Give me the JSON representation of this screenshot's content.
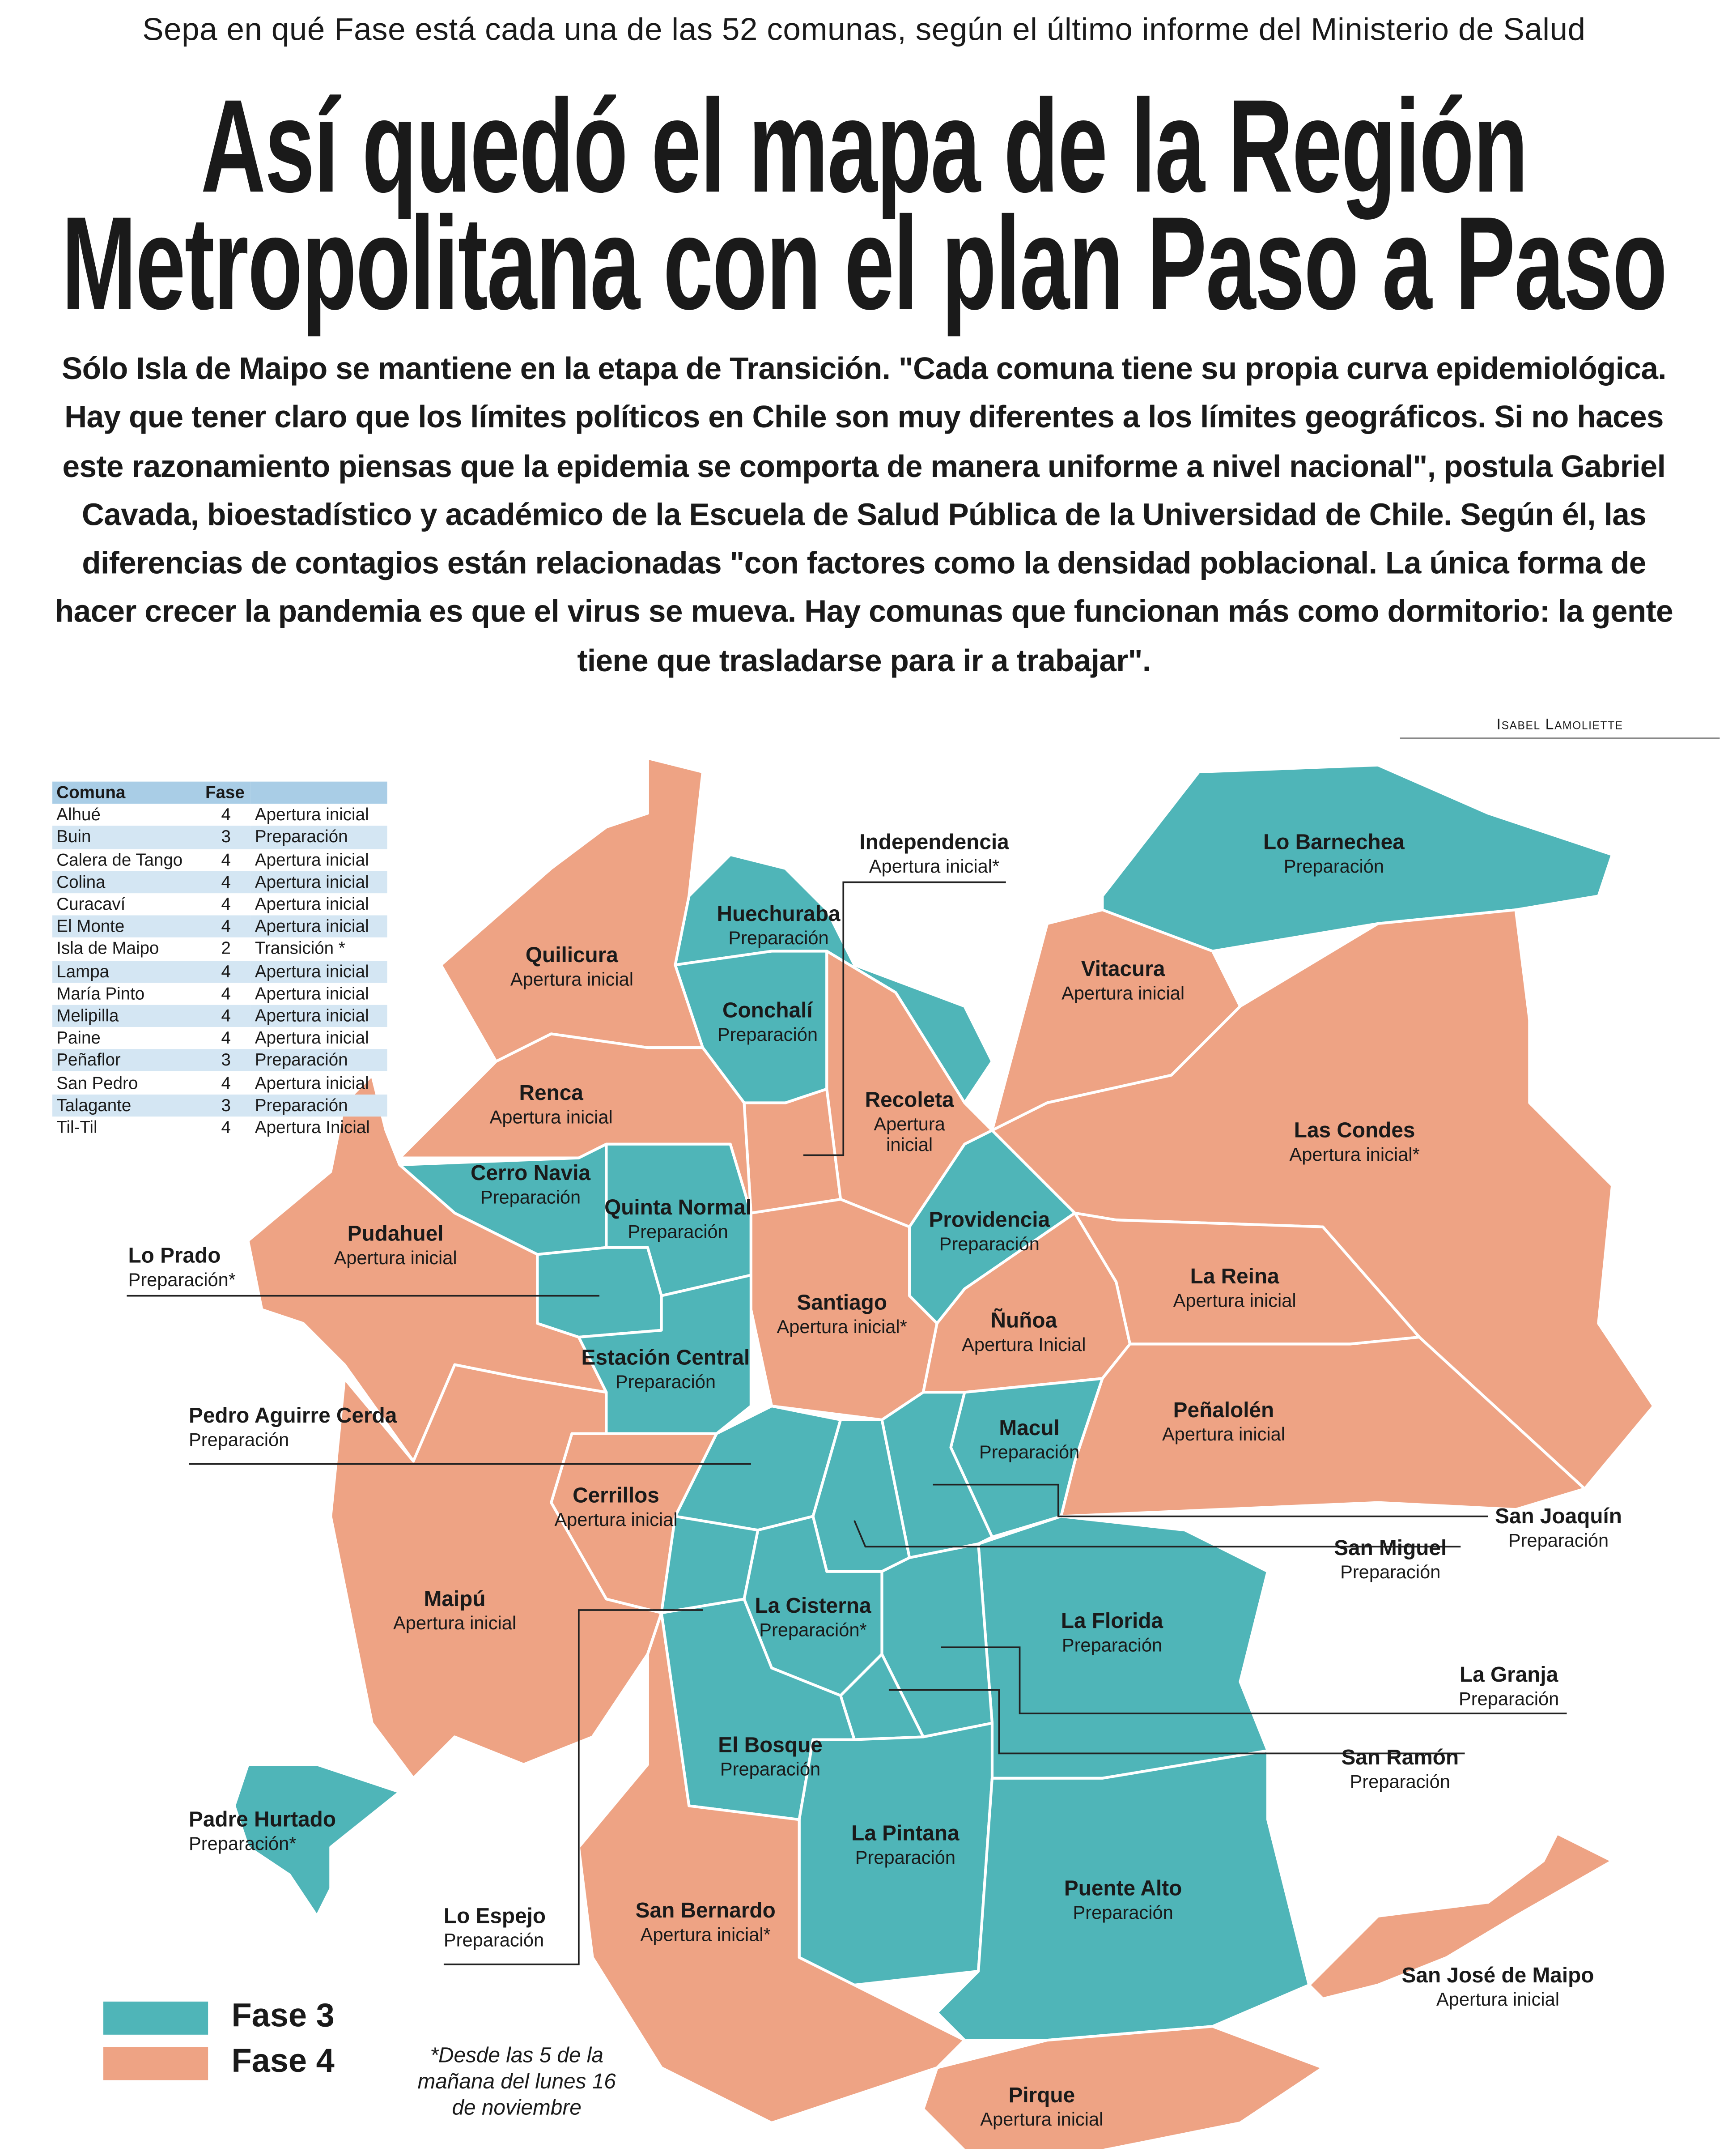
{
  "header": {
    "subtitle": "Sepa en qué Fase está cada una de las 52 comunas, según el último informe del Ministerio de Salud",
    "title_line1": "Así quedó el mapa de la Región",
    "title_line2": "Metropolitana con el plan Paso a Paso",
    "lede": "Sólo Isla de Maipo se mantiene en la etapa de Transición. \"Cada comuna tiene su propia curva epidemiológica. Hay que tener claro que los límites políticos en Chile son muy diferentes a los límites geográficos. Si no haces este razonamiento piensas que la epidemia se comporta de manera uniforme a nivel nacional\", postula Gabriel Cavada, bioestadístico y académico de la Escuela de Salud Pública de la Universidad de Chile. Según él, las diferencias de contagios están relacionadas \"con factores como la densidad poblacional. La única forma de hacer crecer la pandemia es que el virus se mueva. Hay comunas que funcionan más como dormitorio: la gente tiene que trasladarse para ir a trabajar\".",
    "byline": "Isabel Lamoliette"
  },
  "colors": {
    "fase3": "#4fb5b8",
    "fase4": "#eea384",
    "table_header": "#a9cde6",
    "table_stripe": "#d4e6f3"
  },
  "table": {
    "headers": [
      "Comuna",
      "Fase",
      ""
    ],
    "rows": [
      [
        "Alhué",
        "4",
        "Apertura inicial"
      ],
      [
        "Buin",
        "3",
        "Preparación"
      ],
      [
        "Calera de Tango",
        "4",
        "Apertura inicial"
      ],
      [
        "Colina",
        "4",
        "Apertura inicial"
      ],
      [
        "Curacaví",
        "4",
        "Apertura inicial"
      ],
      [
        "El Monte",
        "4",
        "Apertura inicial"
      ],
      [
        "Isla de Maipo",
        "2",
        "Transición *"
      ],
      [
        "Lampa",
        "4",
        "Apertura inicial"
      ],
      [
        "María Pinto",
        "4",
        "Apertura inicial"
      ],
      [
        "Melipilla",
        "4",
        "Apertura inicial"
      ],
      [
        "Paine",
        "4",
        "Apertura inicial"
      ],
      [
        "Peñaflor",
        "3",
        "Preparación"
      ],
      [
        "San Pedro",
        "4",
        "Apertura inicial"
      ],
      [
        "Talagante",
        "3",
        "Preparación"
      ],
      [
        "Til-Til",
        "4",
        "Apertura Inicial"
      ]
    ]
  },
  "comunas": [
    {
      "name": "Lo Barnechea",
      "status": "Preparación",
      "fase": 3
    },
    {
      "name": "Independencia",
      "status": "Apertura inicial*",
      "fase": 4
    },
    {
      "name": "Huechuraba",
      "status": "Preparación",
      "fase": 3
    },
    {
      "name": "Quilicura",
      "status": "Apertura inicial",
      "fase": 4
    },
    {
      "name": "Vitacura",
      "status": "Apertura inicial",
      "fase": 4
    },
    {
      "name": "Conchalí",
      "status": "Preparación",
      "fase": 3
    },
    {
      "name": "Recoleta",
      "status": "Apertura inicial",
      "fase": 4
    },
    {
      "name": "Renca",
      "status": "Apertura inicial",
      "fase": 4
    },
    {
      "name": "Las Condes",
      "status": "Apertura inicial*",
      "fase": 4
    },
    {
      "name": "Cerro Navia",
      "status": "Preparación",
      "fase": 3
    },
    {
      "name": "Quinta Normal",
      "status": "Preparación",
      "fase": 3
    },
    {
      "name": "Providencia",
      "status": "Preparación",
      "fase": 3
    },
    {
      "name": "Pudahuel",
      "status": "Apertura inicial",
      "fase": 4
    },
    {
      "name": "Lo Prado",
      "status": "Preparación*",
      "fase": 3
    },
    {
      "name": "La Reina",
      "status": "Apertura inicial",
      "fase": 4
    },
    {
      "name": "Santiago",
      "status": "Apertura inicial*",
      "fase": 4
    },
    {
      "name": "Ñuñoa",
      "status": "Apertura Inicial",
      "fase": 4
    },
    {
      "name": "Estación Central",
      "status": "Preparación",
      "fase": 3
    },
    {
      "name": "Pedro Aguirre Cerda",
      "status": "Preparación",
      "fase": 3
    },
    {
      "name": "Peñalolén",
      "status": "Apertura inicial",
      "fase": 4
    },
    {
      "name": "Macul",
      "status": "Preparación",
      "fase": 3
    },
    {
      "name": "Cerrillos",
      "status": "Apertura inicial",
      "fase": 4
    },
    {
      "name": "San Joaquín",
      "status": "Preparación",
      "fase": 3
    },
    {
      "name": "San Miguel",
      "status": "Preparación",
      "fase": 3
    },
    {
      "name": "Maipú",
      "status": "Apertura inicial",
      "fase": 4
    },
    {
      "name": "La Cisterna",
      "status": "Preparación*",
      "fase": 3
    },
    {
      "name": "La Florida",
      "status": "Preparación",
      "fase": 3
    },
    {
      "name": "La Granja",
      "status": "Preparación",
      "fase": 3
    },
    {
      "name": "San Ramón",
      "status": "Preparación",
      "fase": 3
    },
    {
      "name": "El Bosque",
      "status": "Preparación",
      "fase": 3
    },
    {
      "name": "Padre Hurtado",
      "status": "Preparación*",
      "fase": 3
    },
    {
      "name": "La Pintana",
      "status": "Preparación",
      "fase": 3
    },
    {
      "name": "Puente Alto",
      "status": "Preparación",
      "fase": 3
    },
    {
      "name": "Lo Espejo",
      "status": "Preparación",
      "fase": 3
    },
    {
      "name": "San Bernardo",
      "status": "Apertura inicial*",
      "fase": 4
    },
    {
      "name": "San José de Maipo",
      "status": "Apertura inicial",
      "fase": 4
    },
    {
      "name": "Pirque",
      "status": "Apertura inicial",
      "fase": 4
    }
  ],
  "legend": [
    {
      "label": "Fase 3",
      "color": "#4fb5b8"
    },
    {
      "label": "Fase 4",
      "color": "#eea384"
    }
  ],
  "footnote": "*Desde las 5 de la mañana del lunes 16 de noviembre"
}
